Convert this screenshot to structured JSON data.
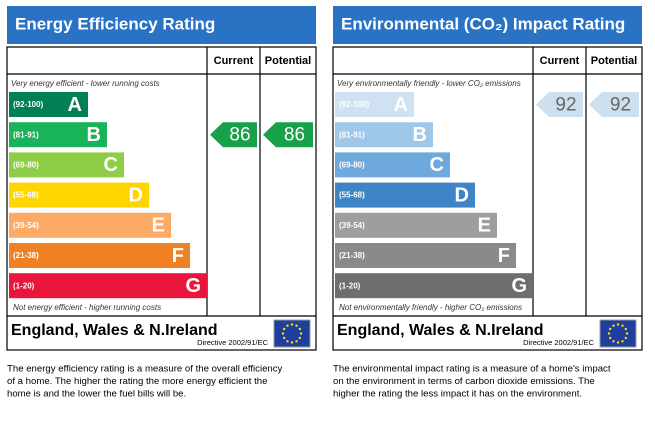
{
  "panels": [
    {
      "title": "Energy Efficiency Rating",
      "columns": [
        "Current",
        "Potential"
      ],
      "top_note": "Very energy efficient - lower running costs",
      "bands": [
        {
          "range": "(92-100)",
          "letter": "A"
        },
        {
          "range": "(81-91)",
          "letter": "B"
        },
        {
          "range": "(69-80)",
          "letter": "C"
        },
        {
          "range": "(55-68)",
          "letter": "D"
        },
        {
          "range": "(39-54)",
          "letter": "E"
        },
        {
          "range": "(21-38)",
          "letter": "F"
        },
        {
          "range": "(1-20)",
          "letter": "G"
        }
      ],
      "bottom_note": "Not energy efficient - higher running costs",
      "current": "86",
      "potential": "86",
      "region": "England, Wales & N.Ireland",
      "directive": "Directive 2002/91/EC",
      "description": [
        "The energy efficiency rating is a measure of the overall efficiency",
        "of a home. The higher the rating the more energy efficient the",
        "home is and the lower the fuel bills will be."
      ]
    },
    {
      "title": "Environmental (CO₂) Impact Rating",
      "columns": [
        "Current",
        "Potential"
      ],
      "top_note": "Very environmentally friendly - lower CO₂ emissions",
      "bands": [
        {
          "range": "(92-100)",
          "letter": "A"
        },
        {
          "range": "(81-91)",
          "letter": "B"
        },
        {
          "range": "(69-80)",
          "letter": "C"
        },
        {
          "range": "(55-68)",
          "letter": "D"
        },
        {
          "range": "(39-54)",
          "letter": "E"
        },
        {
          "range": "(21-38)",
          "letter": "F"
        },
        {
          "range": "(1-20)",
          "letter": "G"
        }
      ],
      "bottom_note": "Not environmentally friendly - higher CO₂ emissions",
      "current": "92",
      "potential": "92",
      "region": "England, Wales & N.Ireland",
      "directive": "Directive 2002/91/EC",
      "description": [
        "The environmental impact rating is a measure of a home's impact",
        "on the environment in terms of carbon dioxide emissions. The",
        "higher the rating the less impact it has on the environment."
      ]
    }
  ]
}
